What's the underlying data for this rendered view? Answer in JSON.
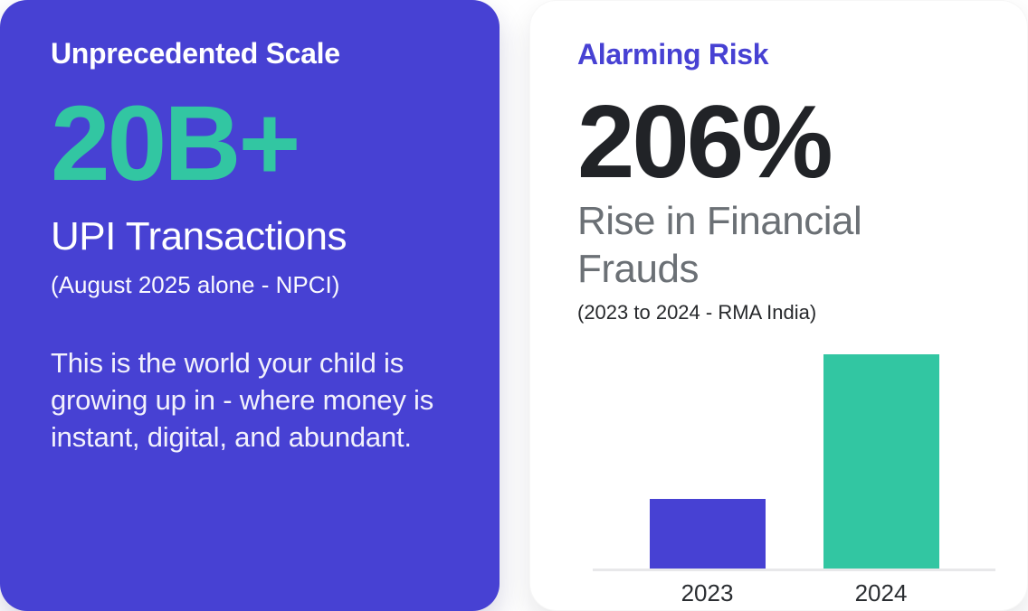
{
  "colors": {
    "indigo_accent": "#4741d3",
    "teal_accent": "#32c6a2",
    "card_white": "#ffffff",
    "stat_dark": "#212327",
    "subtitle_gray": "#6b7075",
    "axis_gray": "#e8e8ea"
  },
  "left_card": {
    "title": "Unprecedented Scale",
    "stat": "20B+",
    "stat_label": "UPI Transactions",
    "source": "(August 2025 alone - NPCI)",
    "body": "This is the world your child is growing up in - where money is instant, digital, and abundant."
  },
  "right_card": {
    "title": "Alarming Risk",
    "stat": "206%",
    "stat_label": "Rise in Financial Frauds",
    "source": "(2023 to 2024 - RMA India)"
  },
  "chart_data": {
    "type": "bar",
    "categories": [
      "2023",
      "2024"
    ],
    "values": [
      100,
      306
    ],
    "bar_colors": [
      "#4741d3",
      "#32c6a2"
    ],
    "title": "",
    "xlabel": "",
    "ylabel": "",
    "ylim": [
      0,
      310
    ],
    "grid": false,
    "legend": false
  }
}
